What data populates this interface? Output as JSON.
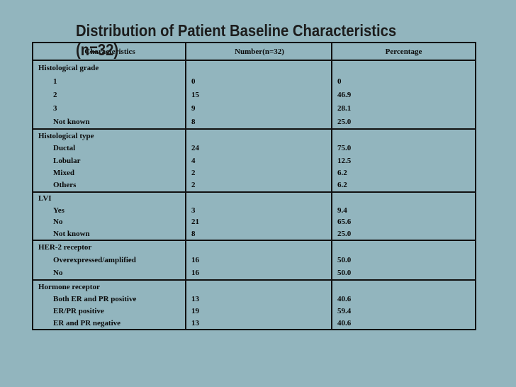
{
  "slide": {
    "background_color": "#92b5be",
    "title_line1": "Distribution of Patient Baseline Characteristics",
    "title_line2": "(n=32)"
  },
  "table": {
    "border_color": "#111111",
    "headers": [
      "Characteristics",
      "Number(n=32)",
      "Percentage"
    ],
    "sections": [
      {
        "label": "Histological grade",
        "rows": [
          {
            "characteristic": "1",
            "number": "0",
            "percentage": "0"
          },
          {
            "characteristic": "2",
            "number": "15",
            "percentage": "46.9"
          },
          {
            "characteristic": "3",
            "number": "9",
            "percentage": "28.1"
          },
          {
            "characteristic": "Not known",
            "number": "8",
            "percentage": "25.0"
          }
        ]
      },
      {
        "label": "Histological type",
        "rows": [
          {
            "characteristic": "Ductal",
            "number": "24",
            "percentage": "75.0"
          },
          {
            "characteristic": "Lobular",
            "number": "4",
            "percentage": "12.5"
          },
          {
            "characteristic": "Mixed",
            "number": "2",
            "percentage": "6.2"
          },
          {
            "characteristic": "Others",
            "number": "2",
            "percentage": "6.2"
          }
        ]
      },
      {
        "label": "LVI",
        "rows": [
          {
            "characteristic": "Yes",
            "number": "3",
            "percentage": "9.4"
          },
          {
            "characteristic": "No",
            "number": "21",
            "percentage": "65.6"
          },
          {
            "characteristic": "Not known",
            "number": "8",
            "percentage": "25.0"
          }
        ]
      },
      {
        "label": "HER-2 receptor",
        "rows": [
          {
            "characteristic": "Overexpressed/amplified",
            "number": "16",
            "percentage": "50.0"
          },
          {
            "characteristic": "No",
            "number": "16",
            "percentage": "50.0"
          }
        ]
      },
      {
        "label": "Hormone receptor",
        "rows": [
          {
            "characteristic": "Both ER and PR positive",
            "number": "13",
            "percentage": "40.6"
          },
          {
            "characteristic": "ER/PR positive",
            "number": "19",
            "percentage": "59.4"
          },
          {
            "characteristic": "ER and PR negative",
            "number": "13",
            "percentage": "40.6"
          }
        ]
      }
    ]
  }
}
